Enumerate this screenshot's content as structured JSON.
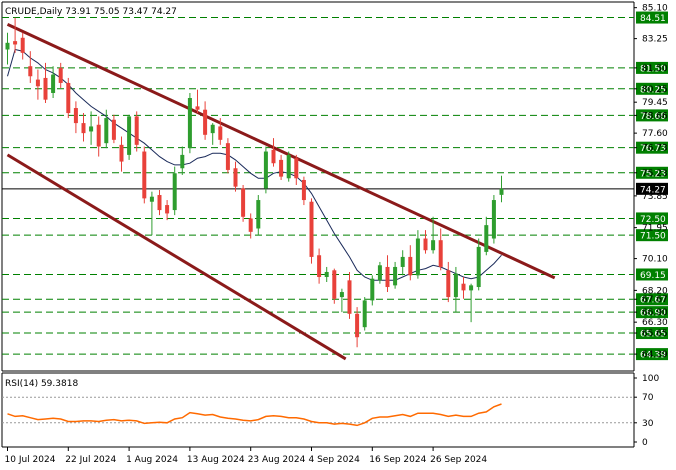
{
  "chart_data": [
    {
      "type": "candlestick",
      "header": "CRUDE,Daily  73.91 75.05 73.47 74.27",
      "ylim": [
        63.5,
        85.2
      ],
      "yticks": [
        "85.10",
        "83.25",
        "81.50",
        "80.25",
        "79.45",
        "78.66",
        "77.60",
        "76.73",
        "75.23",
        "73.85",
        "71.95",
        "70.10",
        "68.20",
        "67.67",
        "66.90",
        "66.30",
        "65.65",
        "64.39"
      ],
      "price_labels": [
        {
          "text": "84.51",
          "value": 84.51,
          "style": "level"
        },
        {
          "text": "81.50",
          "value": 81.5,
          "style": "level"
        },
        {
          "text": "80.25",
          "value": 80.25,
          "style": "level"
        },
        {
          "text": "78.66",
          "value": 78.66,
          "style": "level"
        },
        {
          "text": "76.73",
          "value": 76.73,
          "style": "level"
        },
        {
          "text": "75.23",
          "value": 75.23,
          "style": "level"
        },
        {
          "text": "74.27",
          "value": 74.27,
          "style": "current"
        },
        {
          "text": "72.50",
          "value": 72.5,
          "style": "level"
        },
        {
          "text": "71.50",
          "value": 71.5,
          "style": "level"
        },
        {
          "text": "69.15",
          "value": 69.15,
          "style": "level"
        },
        {
          "text": "67.67",
          "value": 67.67,
          "style": "level"
        },
        {
          "text": "66.90",
          "value": 66.9,
          "style": "level"
        },
        {
          "text": "65.65",
          "value": 65.65,
          "style": "level"
        },
        {
          "text": "64.39",
          "value": 64.39,
          "style": "level"
        }
      ],
      "level_color": "#008000",
      "current_color": "#000000",
      "up_color": "#2e9d2e",
      "down_color": "#e8413a",
      "trend_color": "#8b1a1a",
      "ma_color": "#1a2a5a",
      "xticks": [
        {
          "label": "10 Jul 2024",
          "index": 0
        },
        {
          "label": "22 Jul 2024",
          "index": 8
        },
        {
          "label": "1 Aug 2024",
          "index": 16
        },
        {
          "label": "13 Aug 2024",
          "index": 24
        },
        {
          "label": "23 Aug 2024",
          "index": 32
        },
        {
          "label": "4 Sep 2024",
          "index": 40
        },
        {
          "label": "16 Sep 2024",
          "index": 48
        },
        {
          "label": "26 Sep 2024",
          "index": 56
        }
      ],
      "trendlines": [
        {
          "x1": 0,
          "y1": 84.1,
          "x2": 72,
          "y2": 68.95
        },
        {
          "x1": 0,
          "y1": 76.3,
          "x2": 44.5,
          "y2": 64.1
        }
      ],
      "candles": [
        {
          "o": 82.6,
          "h": 83.6,
          "l": 81.7,
          "c": 83.0
        },
        {
          "o": 83.1,
          "h": 84.5,
          "l": 82.4,
          "c": 82.9
        },
        {
          "o": 83.3,
          "h": 83.6,
          "l": 82.0,
          "c": 82.4
        },
        {
          "o": 81.6,
          "h": 82.5,
          "l": 80.6,
          "c": 81.0
        },
        {
          "o": 80.8,
          "h": 81.4,
          "l": 79.6,
          "c": 80.4
        },
        {
          "o": 80.9,
          "h": 81.8,
          "l": 79.4,
          "c": 79.6
        },
        {
          "o": 80.0,
          "h": 81.6,
          "l": 79.7,
          "c": 81.1
        },
        {
          "o": 81.5,
          "h": 81.8,
          "l": 80.3,
          "c": 80.6
        },
        {
          "o": 80.6,
          "h": 80.9,
          "l": 78.5,
          "c": 78.8
        },
        {
          "o": 79.1,
          "h": 79.5,
          "l": 77.6,
          "c": 78.2
        },
        {
          "o": 78.2,
          "h": 78.8,
          "l": 77.1,
          "c": 77.6
        },
        {
          "o": 77.7,
          "h": 78.9,
          "l": 76.9,
          "c": 78.0
        },
        {
          "o": 78.1,
          "h": 78.6,
          "l": 76.2,
          "c": 76.8
        },
        {
          "o": 77.0,
          "h": 79.0,
          "l": 76.7,
          "c": 78.5
        },
        {
          "o": 78.4,
          "h": 78.7,
          "l": 77.0,
          "c": 77.2
        },
        {
          "o": 76.9,
          "h": 77.4,
          "l": 75.3,
          "c": 75.9
        },
        {
          "o": 76.3,
          "h": 78.7,
          "l": 76.0,
          "c": 78.6
        },
        {
          "o": 78.6,
          "h": 78.9,
          "l": 76.5,
          "c": 76.9
        },
        {
          "o": 76.5,
          "h": 76.8,
          "l": 73.4,
          "c": 73.7
        },
        {
          "o": 73.5,
          "h": 74.1,
          "l": 71.5,
          "c": 73.8
        },
        {
          "o": 73.9,
          "h": 74.2,
          "l": 72.7,
          "c": 73.0
        },
        {
          "o": 73.3,
          "h": 73.6,
          "l": 72.4,
          "c": 72.8
        },
        {
          "o": 73.0,
          "h": 75.6,
          "l": 72.7,
          "c": 75.2
        },
        {
          "o": 75.5,
          "h": 76.8,
          "l": 75.1,
          "c": 76.3
        },
        {
          "o": 76.7,
          "h": 80.0,
          "l": 76.4,
          "c": 79.7
        },
        {
          "o": 79.2,
          "h": 80.2,
          "l": 78.8,
          "c": 79.0
        },
        {
          "o": 79.0,
          "h": 79.5,
          "l": 77.2,
          "c": 77.5
        },
        {
          "o": 77.6,
          "h": 78.2,
          "l": 76.9,
          "c": 78.1
        },
        {
          "o": 78.0,
          "h": 78.5,
          "l": 76.9,
          "c": 77.2
        },
        {
          "o": 77.0,
          "h": 77.3,
          "l": 75.2,
          "c": 75.4
        },
        {
          "o": 75.5,
          "h": 75.9,
          "l": 74.1,
          "c": 74.4
        },
        {
          "o": 74.3,
          "h": 74.5,
          "l": 72.3,
          "c": 72.6
        },
        {
          "o": 72.5,
          "h": 72.8,
          "l": 71.3,
          "c": 71.7
        },
        {
          "o": 71.9,
          "h": 73.9,
          "l": 71.5,
          "c": 73.6
        },
        {
          "o": 74.3,
          "h": 76.8,
          "l": 74.0,
          "c": 76.5
        },
        {
          "o": 76.6,
          "h": 77.3,
          "l": 75.6,
          "c": 75.8
        },
        {
          "o": 76.0,
          "h": 76.3,
          "l": 74.8,
          "c": 75.0
        },
        {
          "o": 74.9,
          "h": 76.5,
          "l": 74.7,
          "c": 76.3
        },
        {
          "o": 76.1,
          "h": 76.3,
          "l": 74.5,
          "c": 74.9
        },
        {
          "o": 74.8,
          "h": 75.0,
          "l": 73.3,
          "c": 73.6
        },
        {
          "o": 73.5,
          "h": 73.7,
          "l": 69.8,
          "c": 70.2
        },
        {
          "o": 70.3,
          "h": 70.7,
          "l": 68.6,
          "c": 69.0
        },
        {
          "o": 69.0,
          "h": 69.6,
          "l": 68.7,
          "c": 69.3
        },
        {
          "o": 69.4,
          "h": 69.5,
          "l": 67.4,
          "c": 67.7
        },
        {
          "o": 67.8,
          "h": 68.3,
          "l": 66.9,
          "c": 68.1
        },
        {
          "o": 68.8,
          "h": 69.3,
          "l": 66.5,
          "c": 66.8
        },
        {
          "o": 66.8,
          "h": 67.2,
          "l": 64.8,
          "c": 65.4
        },
        {
          "o": 66.0,
          "h": 67.8,
          "l": 65.8,
          "c": 67.6
        },
        {
          "o": 67.6,
          "h": 69.1,
          "l": 67.3,
          "c": 68.9
        },
        {
          "o": 68.8,
          "h": 69.9,
          "l": 68.6,
          "c": 69.7
        },
        {
          "o": 69.6,
          "h": 70.3,
          "l": 68.1,
          "c": 68.4
        },
        {
          "o": 68.5,
          "h": 69.9,
          "l": 68.3,
          "c": 69.6
        },
        {
          "o": 69.6,
          "h": 70.6,
          "l": 69.1,
          "c": 70.2
        },
        {
          "o": 70.2,
          "h": 70.9,
          "l": 68.8,
          "c": 69.1
        },
        {
          "o": 69.1,
          "h": 71.8,
          "l": 68.9,
          "c": 71.3
        },
        {
          "o": 71.3,
          "h": 71.8,
          "l": 70.4,
          "c": 70.6
        },
        {
          "o": 70.6,
          "h": 72.6,
          "l": 70.4,
          "c": 71.2
        },
        {
          "o": 71.2,
          "h": 71.9,
          "l": 69.4,
          "c": 69.6
        },
        {
          "o": 69.4,
          "h": 69.9,
          "l": 67.5,
          "c": 67.8
        },
        {
          "o": 67.8,
          "h": 69.6,
          "l": 66.9,
          "c": 69.2
        },
        {
          "o": 68.6,
          "h": 69.0,
          "l": 67.7,
          "c": 68.2
        },
        {
          "o": 68.2,
          "h": 68.6,
          "l": 66.3,
          "c": 68.5
        },
        {
          "o": 68.4,
          "h": 71.3,
          "l": 68.2,
          "c": 70.8
        },
        {
          "o": 70.5,
          "h": 72.6,
          "l": 70.3,
          "c": 72.1
        },
        {
          "o": 71.3,
          "h": 73.9,
          "l": 71.0,
          "c": 73.6
        },
        {
          "o": 73.91,
          "h": 75.05,
          "l": 73.47,
          "c": 74.27
        }
      ],
      "moving_average": [
        81.0,
        82.6,
        82.5,
        82.1,
        81.8,
        81.4,
        81.2,
        80.9,
        80.5,
        80.0,
        79.6,
        79.2,
        78.9,
        78.6,
        78.2,
        77.9,
        77.6,
        77.3,
        77.0,
        76.6,
        76.2,
        75.9,
        75.7,
        75.7,
        75.8,
        76.1,
        76.2,
        76.4,
        76.4,
        76.3,
        76.0,
        75.6,
        75.2,
        74.9,
        74.9,
        75.2,
        75.3,
        75.2,
        75.0,
        74.6,
        74.0,
        73.2,
        72.4,
        71.6,
        70.9,
        70.2,
        69.4,
        69.0,
        68.8,
        68.8,
        68.8,
        68.8,
        69.0,
        69.2,
        69.4,
        69.5,
        69.7,
        69.6,
        69.4,
        69.2,
        69.0,
        68.9,
        69.0,
        69.4,
        69.8,
        70.3
      ]
    },
    {
      "type": "line",
      "header": "RSI(14) 59.3818",
      "ylim": [
        0,
        100
      ],
      "yticks": [
        "100",
        "70",
        "30",
        "0"
      ],
      "levels": [
        70,
        30
      ],
      "line_color": "#ff6a00",
      "values": [
        44,
        40,
        41,
        38,
        35,
        36,
        37,
        36,
        32,
        32,
        33,
        33,
        32,
        34,
        35,
        33,
        34,
        33,
        29,
        30,
        31,
        30,
        36,
        38,
        46,
        44,
        42,
        43,
        39,
        37,
        36,
        34,
        33,
        35,
        40,
        41,
        40,
        38,
        38,
        36,
        32,
        30,
        30,
        28,
        29,
        28,
        26,
        30,
        37,
        39,
        39,
        41,
        43,
        40,
        45,
        45,
        45,
        43,
        40,
        42,
        40,
        40,
        45,
        47,
        55,
        59.3818
      ]
    }
  ]
}
